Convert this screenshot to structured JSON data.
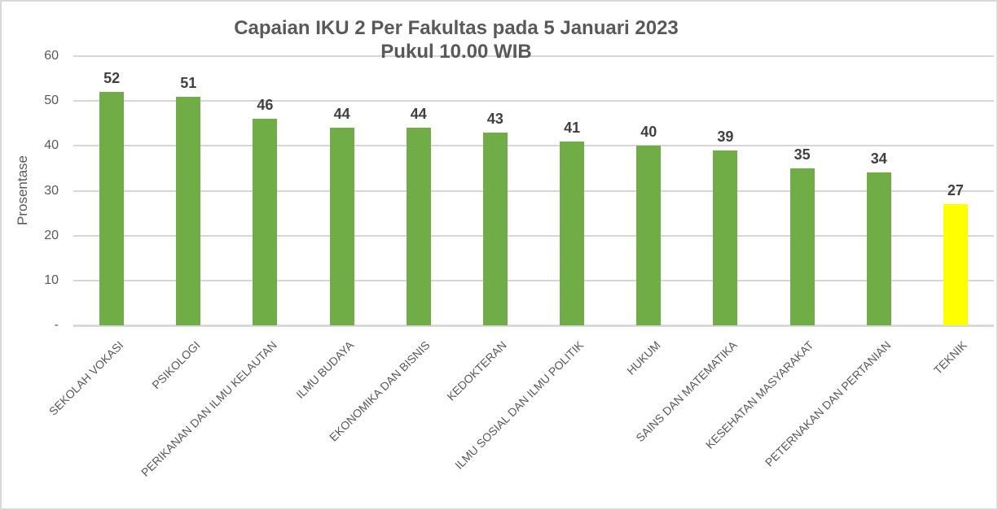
{
  "chart_data": {
    "type": "bar",
    "title": "Capaian IKU 2 Per Fakultas pada 5 Januari 2023",
    "subtitle": "Pukul 10.00 WIB",
    "ylabel": "Prosentase",
    "xlabel": "",
    "categories": [
      "SEKOLAH VOKASI",
      "PSIKOLOGI",
      "PERIKANAN DAN ILMU KELAUTAN",
      "ILMU BUDAYA",
      "EKONOMIKA DAN BISNIS",
      "KEDOKTERAN",
      "ILMU SOSIAL DAN ILMU POLITIK",
      "HUKUM",
      "SAINS DAN MATEMATIKA",
      "KESEHATAN MASYARAKAT",
      "PETERNAKAN DAN PERTANIAN",
      "TEKNIK"
    ],
    "values": [
      52,
      51,
      46,
      44,
      44,
      43,
      41,
      40,
      39,
      35,
      34,
      27
    ],
    "bar_colors": [
      "#70AD47",
      "#70AD47",
      "#70AD47",
      "#70AD47",
      "#70AD47",
      "#70AD47",
      "#70AD47",
      "#70AD47",
      "#70AD47",
      "#70AD47",
      "#70AD47",
      "#FFFF00"
    ],
    "ylim": [
      0,
      60
    ],
    "yticks": [
      {
        "v": 60,
        "label": "60"
      },
      {
        "v": 50,
        "label": "50"
      },
      {
        "v": 40,
        "label": "40"
      },
      {
        "v": 30,
        "label": "30"
      },
      {
        "v": 20,
        "label": "20"
      },
      {
        "v": 10,
        "label": "10"
      },
      {
        "v": 0,
        "label": "-"
      }
    ],
    "grid": true,
    "legend": false,
    "value_labels_shown": true,
    "colors": {
      "bar_default": "#70AD47",
      "bar_highlight": "#FFFF00",
      "gridline": "#D6D6D6",
      "axis_line": "#D9D9D9",
      "border": "#D9D9D9",
      "title_text": "#595959",
      "value_label_text": "#404040",
      "axis_text": "#595959"
    }
  }
}
